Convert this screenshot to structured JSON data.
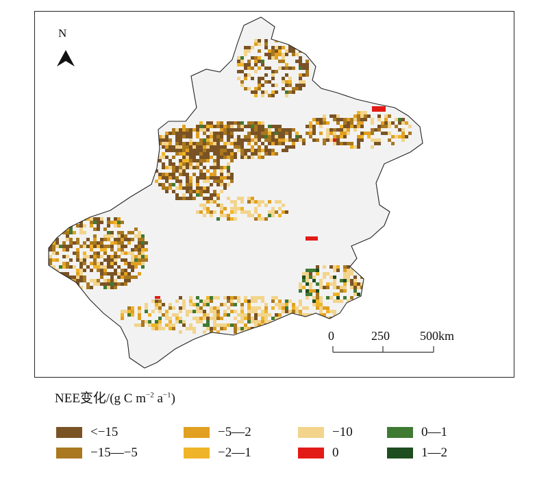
{
  "map": {
    "north_label": "N",
    "scale_bar": {
      "ticks": [
        "0",
        "250",
        "500km"
      ]
    }
  },
  "legend": {
    "title_main": "NEE变化/(g C m",
    "title_sup1": "−2",
    "title_mid": " a",
    "title_sup2": "−1",
    "title_end": ")",
    "items": [
      {
        "label": "<−15",
        "color": "#7a5325"
      },
      {
        "label": "−15—−5",
        "color": "#a9781f"
      },
      {
        "label": "−5—2",
        "color": "#e1a021"
      },
      {
        "label": "−2—1",
        "color": "#f0b428"
      },
      {
        "label": "−10",
        "color": "#f2d48c"
      },
      {
        "label": "0",
        "color": "#e21b17"
      },
      {
        "label": "0—1",
        "color": "#3f7a33"
      },
      {
        "label": "1—2",
        "color": "#1e4d1f"
      }
    ]
  }
}
